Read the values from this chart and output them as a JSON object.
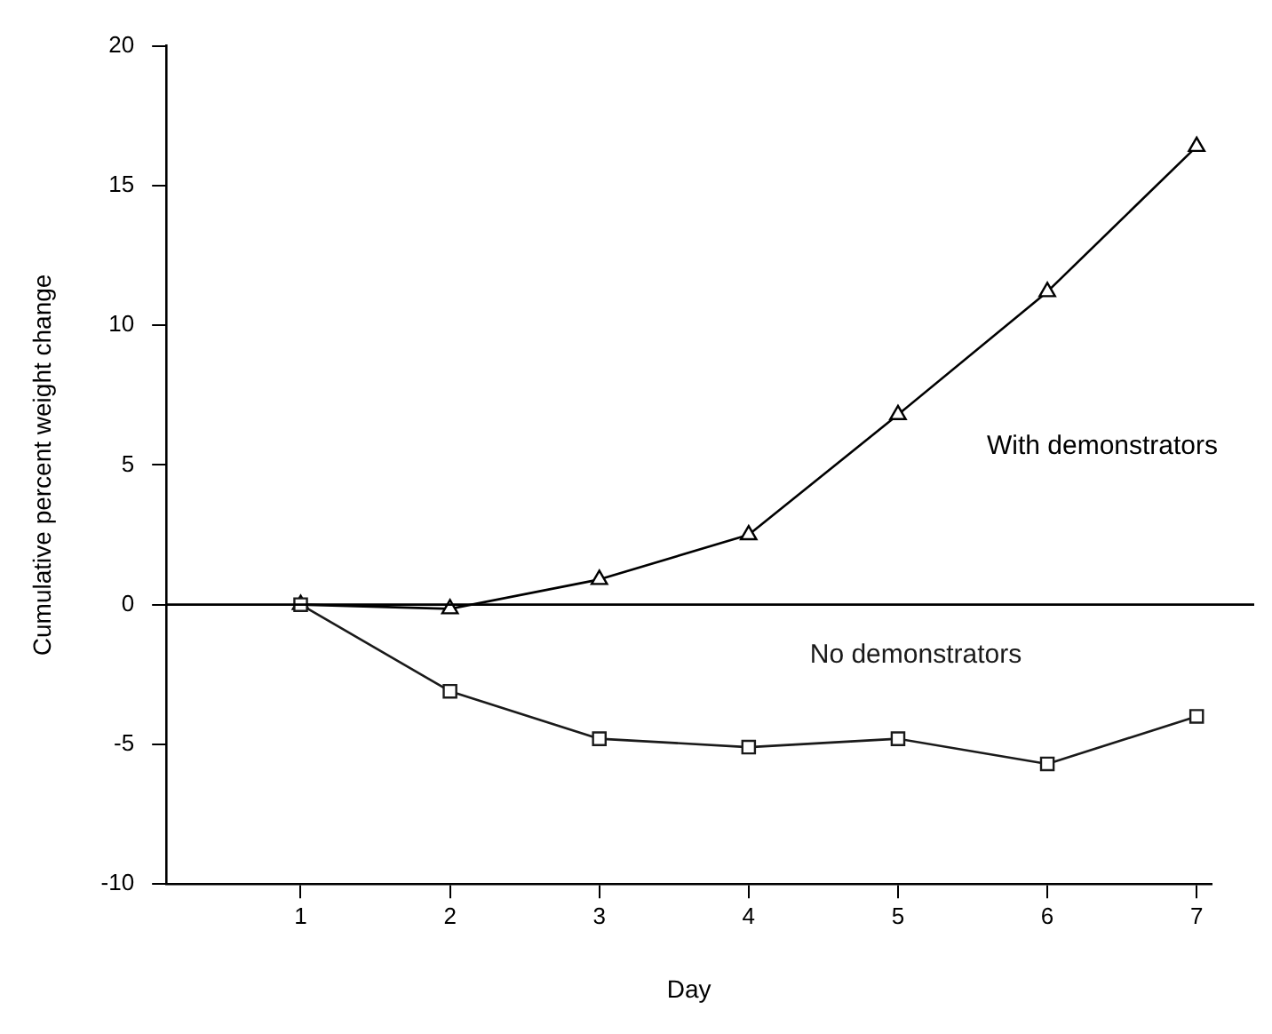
{
  "chart_data": {
    "type": "line",
    "xlabel": "Day",
    "ylabel": "Cumulative percent weight change",
    "x": [
      1,
      2,
      3,
      4,
      5,
      6,
      7
    ],
    "series": [
      {
        "name": "With demonstrators",
        "color": "#000000",
        "marker": "triangle",
        "values": [
          0,
          -0.15,
          0.9,
          2.5,
          6.8,
          11.2,
          16.4
        ]
      },
      {
        "name": "No demonstrators",
        "color": "#1a1a1a",
        "marker": "square",
        "values": [
          0,
          -3.1,
          -4.8,
          -5.1,
          -4.8,
          -5.7,
          -4.0
        ]
      }
    ],
    "xlim": [
      0.1,
      7.1
    ],
    "xticks": [
      1,
      2,
      3,
      4,
      5,
      6,
      7
    ],
    "ylim": [
      -10,
      20
    ],
    "yticks": [
      -10,
      -5,
      0,
      5,
      10,
      15,
      20
    ],
    "ref_lines": [
      {
        "axis": "y",
        "value": 0,
        "color": "#000000"
      }
    ],
    "grid": false,
    "legend": false,
    "line_style": "solid"
  }
}
